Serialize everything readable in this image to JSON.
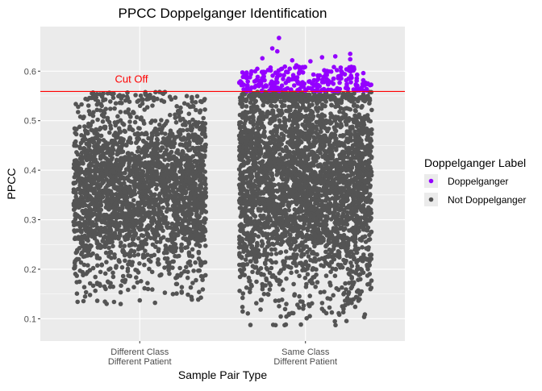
{
  "chart_data": {
    "type": "scatter",
    "title": "PPCC Doppelganger Identification",
    "xlabel": "Sample Pair Type",
    "ylabel": "PPCC",
    "categories": [
      [
        "Different Class",
        "Different Patient"
      ],
      [
        "Same Class",
        "Different Patient"
      ]
    ],
    "ylim": [
      0.055,
      0.69
    ],
    "yticks": [
      0.1,
      0.2,
      0.3,
      0.4,
      0.5,
      0.6
    ],
    "ytick_labels": [
      "0.1",
      "0.2",
      "0.3",
      "0.4",
      "0.5",
      "0.6"
    ],
    "cutoff": {
      "value": 0.559,
      "label": "Cut Off",
      "color": "#ff0000"
    },
    "jitter_width": 0.4,
    "legend": {
      "title": "Doppelganger Label",
      "placement": "right",
      "entries": [
        {
          "label": "Doppelganger",
          "color": "#9400ff"
        },
        {
          "label": "Not Doppelganger",
          "color": "#545454"
        }
      ]
    },
    "colors": {
      "panel": "#ebebeb",
      "grid": "#ffffff"
    },
    "series": [
      {
        "name": "Not Doppelganger",
        "category_index": 0,
        "distribution": {
          "n": 2600,
          "core_range": [
            0.22,
            0.5
          ],
          "min": 0.128,
          "max": 0.558
        },
        "outliers": [
          {
            "x_offset": -0.2,
            "y": 0.13
          },
          {
            "x_offset": 0.0,
            "y": 0.137
          },
          {
            "x_offset": -0.3,
            "y": 0.148
          },
          {
            "x_offset": 0.05,
            "y": 0.16
          },
          {
            "x_offset": -0.22,
            "y": 0.555
          },
          {
            "x_offset": 0.12,
            "y": 0.558
          },
          {
            "x_offset": -0.1,
            "y": 0.55
          },
          {
            "x_offset": 0.27,
            "y": 0.535
          }
        ]
      },
      {
        "name": "Not Doppelganger",
        "category_index": 1,
        "distribution": {
          "n": 3400,
          "core_range": [
            0.2,
            0.558
          ],
          "min": 0.087,
          "max": 0.558
        },
        "outliers": [
          {
            "x_offset": -0.18,
            "y": 0.087
          },
          {
            "x_offset": -0.1,
            "y": 0.108
          },
          {
            "x_offset": 0.3,
            "y": 0.124
          },
          {
            "x_offset": 0.1,
            "y": 0.12
          },
          {
            "x_offset": -0.03,
            "y": 0.135
          },
          {
            "x_offset": 0.15,
            "y": 0.14
          },
          {
            "x_offset": -0.25,
            "y": 0.15
          },
          {
            "x_offset": 0.22,
            "y": 0.163
          }
        ]
      },
      {
        "name": "Doppelganger",
        "category_index": 1,
        "distribution": {
          "n": 240,
          "core_range": [
            0.56,
            0.612
          ],
          "min": 0.56,
          "max": 0.667
        },
        "outliers": [
          {
            "x_offset": -0.16,
            "y": 0.667
          },
          {
            "x_offset": -0.2,
            "y": 0.646
          },
          {
            "x_offset": -0.17,
            "y": 0.64
          },
          {
            "x_offset": 0.27,
            "y": 0.635
          },
          {
            "x_offset": 0.18,
            "y": 0.63
          },
          {
            "x_offset": 0.1,
            "y": 0.628
          },
          {
            "x_offset": -0.26,
            "y": 0.626
          },
          {
            "x_offset": 0.27,
            "y": 0.624
          },
          {
            "x_offset": -0.08,
            "y": 0.622
          },
          {
            "x_offset": 0.03,
            "y": 0.62
          }
        ]
      }
    ]
  }
}
